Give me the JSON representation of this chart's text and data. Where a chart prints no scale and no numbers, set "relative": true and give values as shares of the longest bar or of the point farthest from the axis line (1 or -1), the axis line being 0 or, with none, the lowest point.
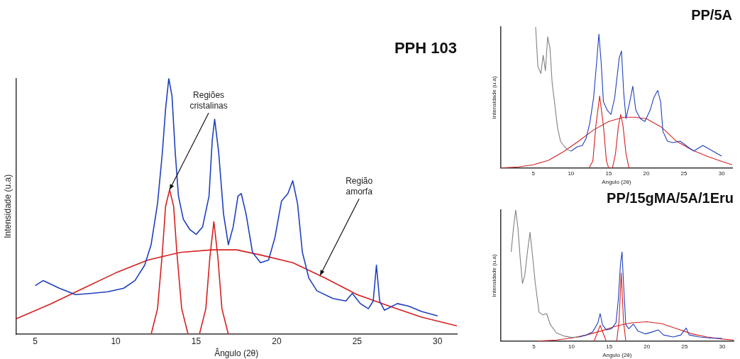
{
  "chart_data": [
    {
      "type": "line",
      "title": "PPH 103",
      "xlabel": "Ângulo (2θ)",
      "ylabel": "Intensidade (u.a)",
      "relative": true,
      "xlim": [
        3.8,
        31.2
      ],
      "xticks": [
        5,
        10,
        15,
        20,
        25,
        30
      ],
      "grid": false,
      "legend": false,
      "marker": "none",
      "line_style": "solid",
      "annotations": [
        {
          "text": "Regiões cristalinas",
          "x": 13.35,
          "y": 0.565
        },
        {
          "text": "Região amorfa",
          "x": 22.7,
          "y": 0.23
        }
      ],
      "series": [
        {
          "color": "#1f3fbf",
          "x": [
            5,
            5.5,
            6.5,
            7.5,
            8.5,
            9.5,
            10.5,
            11.2,
            11.8,
            12.2,
            12.6,
            12.9,
            13.1,
            13.3,
            13.5,
            13.7,
            13.9,
            14.2,
            14.6,
            15,
            15.4,
            15.8,
            16,
            16.15,
            16.4,
            16.7,
            17,
            17.3,
            17.6,
            17.8,
            18.1,
            18.5,
            19,
            19.5,
            19.9,
            20.3,
            20.7,
            21,
            21.3,
            21.6,
            22,
            22.5,
            23.5,
            24.3,
            24.7,
            25.2,
            25.7,
            26,
            26.2,
            26.4,
            26.7,
            27.5,
            28.2,
            29,
            30
          ],
          "values": [
            0.19,
            0.21,
            0.18,
            0.155,
            0.16,
            0.166,
            0.18,
            0.21,
            0.27,
            0.35,
            0.51,
            0.71,
            0.88,
            1.0,
            0.93,
            0.71,
            0.54,
            0.45,
            0.41,
            0.39,
            0.42,
            0.54,
            0.76,
            0.84,
            0.71,
            0.47,
            0.35,
            0.42,
            0.54,
            0.55,
            0.47,
            0.32,
            0.28,
            0.29,
            0.38,
            0.52,
            0.55,
            0.6,
            0.51,
            0.32,
            0.22,
            0.17,
            0.14,
            0.13,
            0.16,
            0.12,
            0.1,
            0.13,
            0.27,
            0.13,
            0.094,
            0.12,
            0.11,
            0.089,
            0.072
          ]
        },
        {
          "color": "#d62020",
          "x": [
            3.8,
            6,
            8,
            10,
            12,
            14,
            16,
            17.5,
            19,
            21,
            23,
            25,
            27,
            29,
            31.2
          ],
          "values": [
            0.06,
            0.12,
            0.18,
            0.24,
            0.29,
            0.32,
            0.33,
            0.33,
            0.31,
            0.28,
            0.22,
            0.155,
            0.11,
            0.067,
            0.033
          ]
        },
        {
          "color": "#d62020",
          "x": [
            12.2,
            12.6,
            12.9,
            13.1,
            13.35,
            13.6,
            13.8,
            14.1,
            14.5
          ],
          "values": [
            0,
            0.1,
            0.32,
            0.5,
            0.565,
            0.5,
            0.32,
            0.1,
            0
          ]
        },
        {
          "color": "#d62020",
          "x": [
            15.2,
            15.6,
            15.85,
            16.1,
            16.35,
            16.6,
            17
          ],
          "values": [
            0,
            0.1,
            0.3,
            0.44,
            0.3,
            0.1,
            0
          ]
        }
      ]
    },
    {
      "type": "line",
      "title": "PP/5A",
      "xlabel": "Angulo (2θ)",
      "ylabel": "Intensidade (u.a)",
      "relative": true,
      "xlim": [
        0.65,
        31.4
      ],
      "xticks": [
        5,
        10,
        15,
        20,
        25,
        30
      ],
      "grid": false,
      "legend": false,
      "marker": "none",
      "line_style": "solid",
      "series": [
        {
          "color": "#808080",
          "x": [
            5.3,
            5.6,
            6,
            6.3,
            6.6,
            6.9,
            7.2,
            7.5,
            7.8,
            8.2,
            8.6,
            9,
            9.5,
            10
          ],
          "values": [
            1.0,
            0.72,
            0.67,
            0.8,
            0.69,
            0.93,
            0.85,
            0.6,
            0.47,
            0.29,
            0.19,
            0.16,
            0.13,
            0.12
          ]
        },
        {
          "color": "#1f3fbf",
          "x": [
            10,
            10.8,
            11.5,
            12,
            12.5,
            13,
            13.4,
            13.7,
            14,
            14.3,
            14.8,
            15.3,
            15.8,
            16.4,
            16.7,
            17,
            17.3,
            17.8,
            18.2,
            18.6,
            19.2,
            19.8,
            20.5,
            21,
            21.5,
            21.9,
            22.2,
            22.8,
            23.5,
            24.5,
            25.5,
            26.3,
            27.5,
            28.5,
            29.5,
            30
          ],
          "values": [
            0.12,
            0.15,
            0.16,
            0.21,
            0.32,
            0.5,
            0.75,
            0.95,
            0.75,
            0.47,
            0.41,
            0.38,
            0.5,
            0.78,
            0.83,
            0.53,
            0.35,
            0.47,
            0.58,
            0.41,
            0.35,
            0.33,
            0.41,
            0.5,
            0.55,
            0.47,
            0.26,
            0.19,
            0.18,
            0.19,
            0.15,
            0.12,
            0.16,
            0.13,
            0.1,
            0.085
          ]
        },
        {
          "color": "#d62020",
          "x": [
            0.65,
            3,
            5,
            7,
            9,
            11,
            13,
            15,
            17,
            18.5,
            20,
            22,
            24,
            26,
            28,
            30,
            31.4
          ],
          "values": [
            0,
            0.008,
            0.023,
            0.054,
            0.116,
            0.19,
            0.27,
            0.33,
            0.36,
            0.36,
            0.35,
            0.29,
            0.19,
            0.13,
            0.085,
            0.047,
            0.023
          ]
        },
        {
          "color": "#d62020",
          "x": [
            12.4,
            12.9,
            13.3,
            13.8,
            14.3,
            14.7,
            15
          ],
          "values": [
            0,
            0.05,
            0.3,
            0.51,
            0.3,
            0.05,
            0
          ]
        },
        {
          "color": "#d62020",
          "x": [
            15.5,
            15.9,
            16.3,
            16.6,
            16.9,
            17.3,
            17.7
          ],
          "values": [
            0,
            0.1,
            0.3,
            0.38,
            0.3,
            0.1,
            0
          ]
        }
      ]
    },
    {
      "type": "line",
      "title": "PP/15gMA/5A/1Eru",
      "xlabel": "Angulo (2θ)",
      "ylabel": "Intensidade (u.a)",
      "relative": true,
      "xlim": [
        0.6,
        31.5
      ],
      "xticks": [
        5,
        10,
        15,
        20,
        25,
        30
      ],
      "grid": false,
      "legend": false,
      "marker": "none",
      "line_style": "solid",
      "series": [
        {
          "color": "#808080",
          "x": [
            2,
            2.3,
            2.6,
            2.9,
            3.2,
            3.5,
            3.8,
            4.2,
            4.5,
            4.8,
            5.2,
            5.7,
            6.2,
            6.7,
            7.2,
            8,
            9,
            10,
            11
          ],
          "values": [
            0.68,
            0.86,
            1.0,
            0.86,
            0.63,
            0.44,
            0.5,
            0.7,
            0.83,
            0.67,
            0.44,
            0.22,
            0.2,
            0.21,
            0.125,
            0.0625,
            0.039,
            0.028,
            0.031
          ]
        },
        {
          "color": "#1f3fbf",
          "x": [
            11,
            12,
            12.8,
            13.5,
            13.8,
            14.1,
            14.6,
            15.3,
            15.9,
            16.2,
            16.5,
            16.7,
            16.9,
            17.2,
            17.6,
            18.2,
            18.8,
            19.8,
            20.7,
            21.5,
            22.2,
            23.5,
            24.5,
            25.2,
            25.6,
            27,
            28.5,
            30
          ],
          "values": [
            0.031,
            0.047,
            0.07,
            0.14,
            0.21,
            0.125,
            0.086,
            0.094,
            0.14,
            0.31,
            0.59,
            0.68,
            0.44,
            0.125,
            0.094,
            0.13,
            0.078,
            0.055,
            0.07,
            0.086,
            0.047,
            0.031,
            0.047,
            0.1,
            0.047,
            0.031,
            0.023,
            0.02
          ]
        },
        {
          "color": "#d62020",
          "x": [
            5.5,
            8,
            10,
            12,
            14,
            16,
            18,
            20,
            22,
            24,
            26,
            28,
            30,
            31.5
          ],
          "values": [
            0,
            0.008,
            0.023,
            0.047,
            0.078,
            0.117,
            0.14,
            0.148,
            0.133,
            0.094,
            0.055,
            0.031,
            0.016,
            0.008
          ]
        },
        {
          "color": "#d62020",
          "x": [
            13,
            13.4,
            13.8,
            14.2,
            14.6
          ],
          "values": [
            0,
            0.06,
            0.12,
            0.06,
            0
          ]
        },
        {
          "color": "#d62020",
          "x": [
            16,
            16.3,
            16.6,
            16.9,
            17.2
          ],
          "values": [
            0,
            0.15,
            0.52,
            0.15,
            0
          ]
        }
      ]
    }
  ]
}
